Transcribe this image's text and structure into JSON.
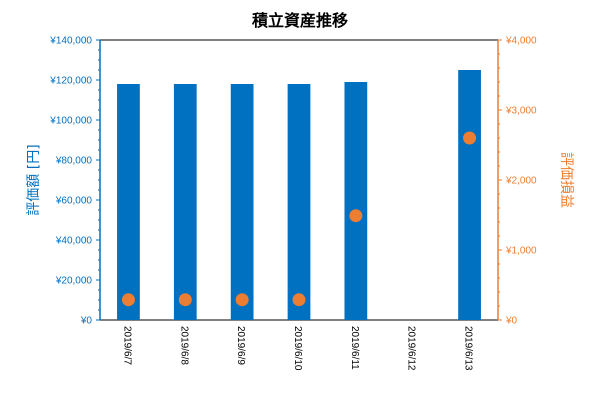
{
  "chart_data": {
    "type": "bar",
    "title": "積立資産推移",
    "categories": [
      "2019/6/7",
      "2019/6/8",
      "2019/6/9",
      "2019/6/10",
      "2019/6/11",
      "2019/6/12",
      "2019/6/13"
    ],
    "series": [
      {
        "name": "評価額",
        "type": "bar",
        "axis": "left",
        "color": "#0070c0",
        "values": [
          118000,
          118000,
          118000,
          118000,
          119000,
          null,
          125000
        ]
      },
      {
        "name": "評価損益",
        "type": "scatter",
        "axis": "right",
        "color": "#ed7d31",
        "values": [
          290,
          290,
          290,
          290,
          1490,
          null,
          2600
        ]
      }
    ],
    "left_axis": {
      "label": "評価額 [円]",
      "ylim": [
        0,
        140000
      ],
      "tick_labels": [
        "¥0",
        "¥20,000",
        "¥40,000",
        "¥60,000",
        "¥80,000",
        "¥100,000",
        "¥120,000",
        "¥140,000"
      ],
      "color": "#0070c0"
    },
    "right_axis": {
      "label": "評価損益",
      "ylim": [
        0,
        4000
      ],
      "tick_labels": [
        "¥0",
        "¥1,000",
        "¥2,000",
        "¥3,000",
        "¥4,000"
      ],
      "color": "#ed7d31"
    },
    "grid": false,
    "legend": "none"
  }
}
